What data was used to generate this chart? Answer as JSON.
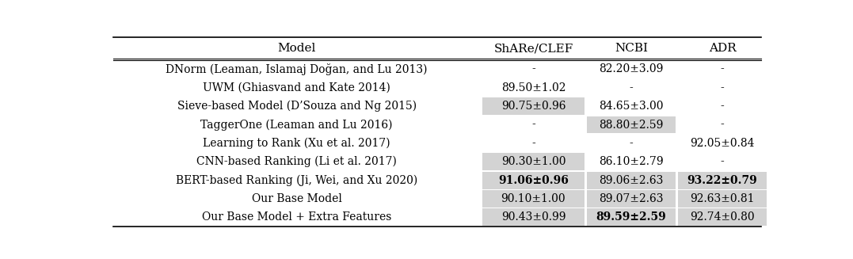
{
  "columns": [
    "Model",
    "ShARe/CLEF",
    "NCBI",
    "ADR"
  ],
  "rows": [
    {
      "model": "DNorm (Leaman, Islamaj Doğan, and Lu 2013)",
      "vals": [
        "-",
        "82.20±3.09",
        "-"
      ],
      "gray": [
        false,
        false,
        false
      ],
      "bold": [
        false,
        false,
        false
      ]
    },
    {
      "model": "UWM (Ghiasvand and Kate 2014)",
      "vals": [
        "89.50±1.02",
        "-",
        "-"
      ],
      "gray": [
        false,
        false,
        false
      ],
      "bold": [
        false,
        false,
        false
      ]
    },
    {
      "model": "Sieve-based Model (D’Souza and Ng 2015)",
      "vals": [
        "90.75±0.96",
        "84.65±3.00",
        "-"
      ],
      "gray": [
        true,
        false,
        false
      ],
      "bold": [
        false,
        false,
        false
      ]
    },
    {
      "model": "TaggerOne (Leaman and Lu 2016)",
      "vals": [
        "-",
        "88.80±2.59",
        "-"
      ],
      "gray": [
        false,
        true,
        false
      ],
      "bold": [
        false,
        false,
        false
      ]
    },
    {
      "model": "Learning to Rank (Xu et al. 2017)",
      "vals": [
        "-",
        "-",
        "92.05±0.84"
      ],
      "gray": [
        false,
        false,
        false
      ],
      "bold": [
        false,
        false,
        false
      ]
    },
    {
      "model": "CNN-based Ranking (Li et al. 2017)",
      "vals": [
        "90.30±1.00",
        "86.10±2.79",
        "-"
      ],
      "gray": [
        true,
        false,
        false
      ],
      "bold": [
        false,
        false,
        false
      ]
    },
    {
      "model": "BERT-based Ranking (Ji, Wei, and Xu 2020)",
      "vals": [
        "91.06±0.96",
        "89.06±2.63",
        "93.22±0.79"
      ],
      "gray": [
        true,
        true,
        true
      ],
      "bold": [
        true,
        false,
        true
      ]
    },
    {
      "model": "Our Base Model",
      "vals": [
        "90.10±1.00",
        "89.07±2.63",
        "92.63±0.81"
      ],
      "gray": [
        true,
        true,
        true
      ],
      "bold": [
        false,
        false,
        false
      ]
    },
    {
      "model": "Our Base Model + Extra Features",
      "vals": [
        "90.43±0.99",
        "89.59±2.59",
        "92.74±0.80"
      ],
      "gray": [
        true,
        true,
        true
      ],
      "bold": [
        false,
        true,
        false
      ]
    }
  ],
  "gray_color": "#d3d3d3",
  "bg_color": "#ffffff",
  "fig_width": 10.77,
  "fig_height": 3.27,
  "dpi": 100
}
